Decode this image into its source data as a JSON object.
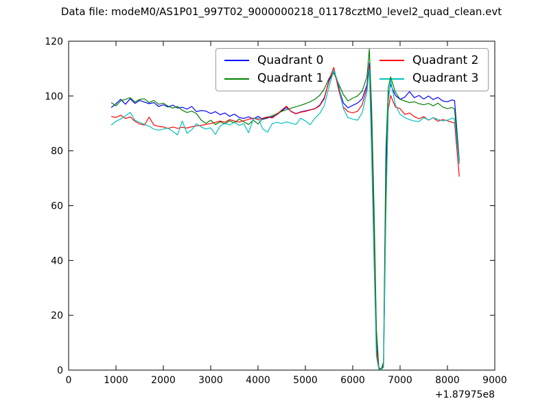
{
  "chart_data": {
    "type": "line",
    "title": "Data file: modeM0/AS1P01_997T02_9000000218_01178cztM0_level2_quad_clean.evt",
    "xlabel": "",
    "ylabel": "",
    "xlim": [
      0,
      9000
    ],
    "ylim": [
      0,
      120
    ],
    "grid": false,
    "x_axis_offset_label": "+1.87975e8",
    "x_tick_values": [
      0,
      1000,
      2000,
      3000,
      4000,
      5000,
      6000,
      7000,
      8000,
      9000
    ],
    "x_tick_labels": [
      "0",
      "1000",
      "2000",
      "3000",
      "4000",
      "5000",
      "6000",
      "7000",
      "8000",
      "9000"
    ],
    "y_tick_values": [
      0,
      20,
      40,
      60,
      80,
      100,
      120
    ],
    "y_tick_labels": [
      "0",
      "20",
      "40",
      "60",
      "80",
      "100",
      "120"
    ],
    "legend": {
      "position": "upper center",
      "columns": 2,
      "entries": [
        {
          "label": "Quadrant 0",
          "color": "#0000ff"
        },
        {
          "label": "Quadrant 1",
          "color": "#008000"
        },
        {
          "label": "Quadrant 2",
          "color": "#ff0000"
        },
        {
          "label": "Quadrant 3",
          "color": "#00bfbf"
        }
      ]
    },
    "x": [
      900,
      1000,
      1100,
      1200,
      1300,
      1400,
      1500,
      1600,
      1700,
      1800,
      1900,
      2000,
      2100,
      2200,
      2300,
      2400,
      2500,
      2600,
      2700,
      2800,
      2900,
      3000,
      3100,
      3200,
      3300,
      3400,
      3500,
      3600,
      3700,
      3800,
      3900,
      4000,
      4100,
      4200,
      4300,
      4400,
      4500,
      4600,
      4700,
      4800,
      4900,
      5000,
      5100,
      5200,
      5300,
      5400,
      5500,
      5600,
      5700,
      5800,
      5900,
      6000,
      6100,
      6200,
      6300,
      6350,
      6400,
      6450,
      6500,
      6550,
      6600,
      6650,
      6700,
      6750,
      6800,
      6900,
      7000,
      7100,
      7200,
      7300,
      7400,
      7500,
      7600,
      7700,
      7800,
      7900,
      8000,
      8100,
      8150,
      8250
    ],
    "series": [
      {
        "name": "Quadrant 0",
        "color": "#0000ff",
        "values": [
          95.8,
          97.2,
          98.8,
          97.0,
          99.0,
          97.3,
          98.4,
          97.8,
          97.2,
          97.6,
          96.2,
          96.8,
          96.0,
          96.7,
          95.6,
          95.9,
          95.2,
          96.2,
          94.3,
          94.7,
          94.5,
          93.6,
          94.3,
          93.2,
          93.8,
          92.6,
          93.4,
          92.2,
          91.8,
          92.4,
          91.6,
          92.6,
          91.5,
          92.0,
          92.4,
          93.2,
          94.6,
          95.8,
          94.4,
          93.6,
          94.2,
          94.6,
          95.0,
          95.4,
          96.6,
          99.4,
          105.5,
          109.2,
          103.4,
          97.5,
          95.7,
          96.6,
          97.4,
          99.0,
          104.0,
          112.0,
          90.0,
          55.0,
          12.0,
          0.5,
          0.2,
          2.0,
          70.0,
          100.0,
          104.2,
          100.2,
          98.8,
          99.6,
          101.6,
          99.4,
          100.2,
          98.9,
          100.0,
          98.7,
          99.5,
          98.2,
          97.9,
          98.6,
          98.3,
          76.3
        ]
      },
      {
        "name": "Quadrant 1",
        "color": "#008000",
        "values": [
          97.6,
          96.4,
          98.2,
          98.8,
          99.4,
          97.8,
          98.8,
          99.0,
          97.6,
          98.4,
          97.0,
          97.4,
          96.3,
          95.6,
          96.2,
          94.8,
          94.0,
          94.5,
          93.6,
          91.2,
          90.0,
          91.2,
          89.6,
          90.6,
          89.8,
          91.0,
          90.2,
          91.6,
          90.6,
          89.6,
          91.2,
          89.8,
          91.8,
          92.2,
          92.8,
          93.6,
          94.4,
          95.0,
          95.6,
          96.1,
          96.6,
          97.2,
          97.9,
          98.8,
          100.2,
          102.6,
          106.5,
          108.4,
          104.6,
          100.6,
          98.2,
          99.2,
          100.0,
          101.8,
          107.0,
          117.2,
          95.0,
          60.0,
          15.0,
          1.0,
          0.3,
          3.0,
          80.0,
          103.0,
          107.0,
          101.4,
          98.8,
          98.2,
          97.6,
          97.9,
          97.2,
          96.8,
          97.3,
          96.4,
          97.4,
          96.0,
          95.4,
          95.8,
          95.2,
          75.6
        ]
      },
      {
        "name": "Quadrant 2",
        "color": "#ff0000",
        "values": [
          92.6,
          92.2,
          93.0,
          91.8,
          92.4,
          90.8,
          89.8,
          89.4,
          92.3,
          89.4,
          88.9,
          88.7,
          88.2,
          88.7,
          88.2,
          88.6,
          88.3,
          88.8,
          89.1,
          89.3,
          89.6,
          90.0,
          90.4,
          90.9,
          90.4,
          91.4,
          90.9,
          90.5,
          91.0,
          91.5,
          91.9,
          91.4,
          91.9,
          92.4,
          92.0,
          93.3,
          94.9,
          96.3,
          94.3,
          93.5,
          94.1,
          94.4,
          94.9,
          95.3,
          96.4,
          99.0,
          106.0,
          110.4,
          102.5,
          96.0,
          94.3,
          93.9,
          94.4,
          96.8,
          103.0,
          110.8,
          82.0,
          45.0,
          8.0,
          0.4,
          0.2,
          1.5,
          60.0,
          95.0,
          100.2,
          96.0,
          95.4,
          93.3,
          93.8,
          92.5,
          91.7,
          92.5,
          91.2,
          92.1,
          90.8,
          91.4,
          91.0,
          90.4,
          90.2,
          70.6
        ]
      },
      {
        "name": "Quadrant 3",
        "color": "#00bfbf",
        "values": [
          89.4,
          90.8,
          91.6,
          92.8,
          94.0,
          91.2,
          90.4,
          89.6,
          89.0,
          87.9,
          87.5,
          87.9,
          88.3,
          87.1,
          85.8,
          90.9,
          86.4,
          87.7,
          89.9,
          88.7,
          87.9,
          88.4,
          86.0,
          89.0,
          90.1,
          89.4,
          90.5,
          89.3,
          89.9,
          86.6,
          91.6,
          92.0,
          88.0,
          86.8,
          89.9,
          90.4,
          90.0,
          90.6,
          90.1,
          89.6,
          91.9,
          90.9,
          89.5,
          91.9,
          93.6,
          96.5,
          103.5,
          109.4,
          104.5,
          95.5,
          92.1,
          91.6,
          91.2,
          93.8,
          101.5,
          109.8,
          78.0,
          40.0,
          5.0,
          0.3,
          0.1,
          1.0,
          55.0,
          98.0,
          105.8,
          96.8,
          93.3,
          92.1,
          91.4,
          90.9,
          90.7,
          92.1,
          91.3,
          92.1,
          91.5,
          90.9,
          91.2,
          92.0,
          91.6,
          75.2
        ]
      }
    ]
  }
}
